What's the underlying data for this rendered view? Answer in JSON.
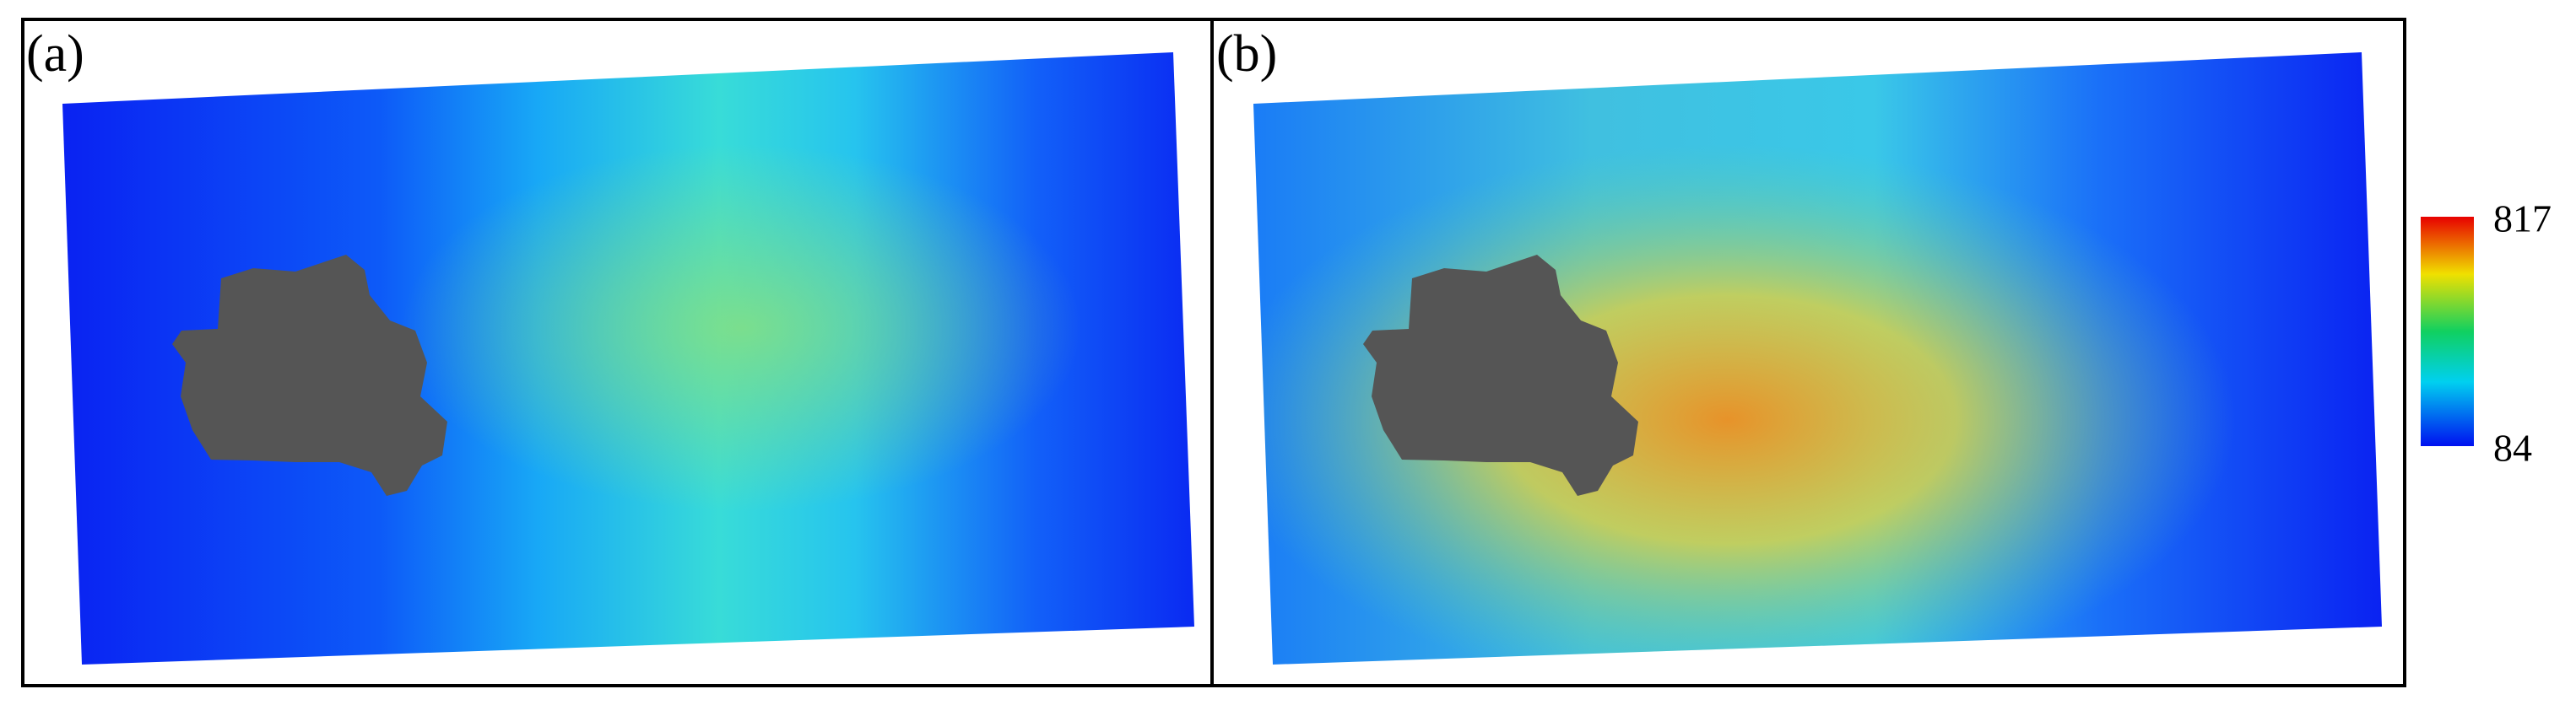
{
  "panels": [
    {
      "label": "(a)"
    },
    {
      "label": "(b)"
    }
  ],
  "colorbar": {
    "max": 817,
    "min": 84
  }
}
